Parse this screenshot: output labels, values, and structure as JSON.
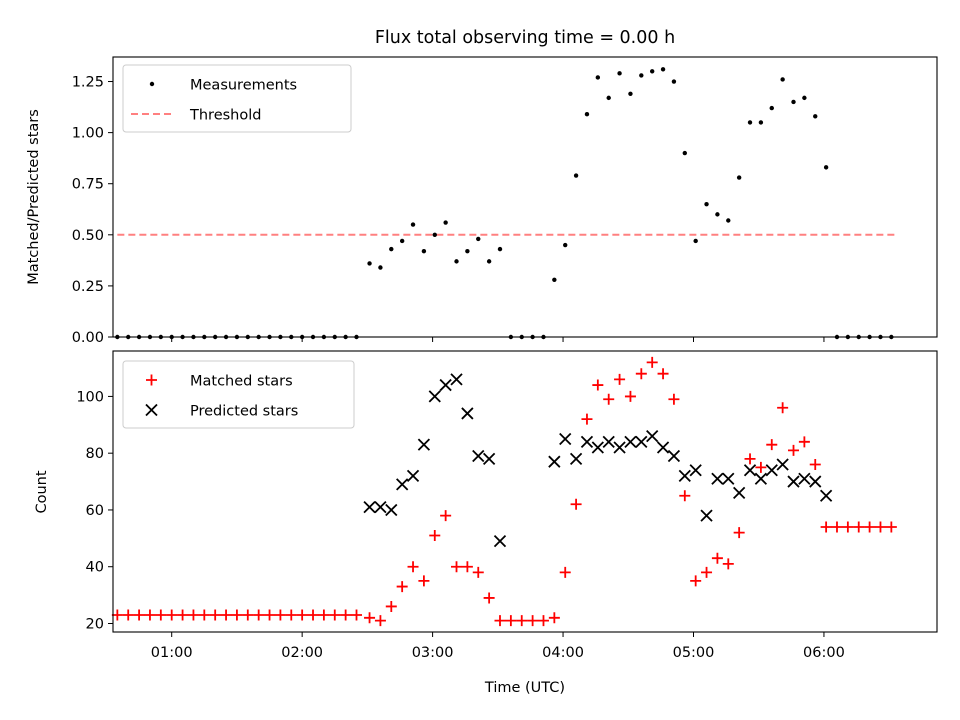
{
  "title": "Flux total observing time = 0.00 h",
  "colors": {
    "measurements": "#000000",
    "threshold": "#ff8080",
    "matched": "#ff0000",
    "predicted": "#000000"
  },
  "chart_data": [
    {
      "type": "scatter",
      "ylabel": "Matched/Predicted stars",
      "xlim": [
        "00:33",
        "06:52"
      ],
      "ylim": [
        0,
        1.37
      ],
      "yticks": [
        "0.00",
        "0.25",
        "0.50",
        "0.75",
        "1.00",
        "1.25"
      ],
      "grid": false,
      "legend": "top-left",
      "legend_entries": [
        "Measurements",
        "Threshold"
      ],
      "threshold": {
        "name": "Threshold",
        "value": 0.5,
        "x_range": [
          "00:35",
          "06:33"
        ]
      },
      "series": [
        {
          "name": "Measurements",
          "x": [
            "00:35",
            "00:40",
            "00:45",
            "00:50",
            "00:55",
            "01:00",
            "01:05",
            "01:10",
            "01:15",
            "01:20",
            "01:25",
            "01:30",
            "01:35",
            "01:40",
            "01:45",
            "01:50",
            "01:55",
            "02:00",
            "02:05",
            "02:10",
            "02:15",
            "02:20",
            "02:25",
            "02:31",
            "02:36",
            "02:41",
            "02:46",
            "02:51",
            "02:56",
            "03:01",
            "03:06",
            "03:11",
            "03:16",
            "03:21",
            "03:26",
            "03:31",
            "03:36",
            "03:41",
            "03:46",
            "03:51",
            "03:56",
            "04:01",
            "04:06",
            "04:11",
            "04:16",
            "04:21",
            "04:26",
            "04:31",
            "04:36",
            "04:41",
            "04:46",
            "04:51",
            "04:56",
            "05:01",
            "05:06",
            "05:11",
            "05:16",
            "05:21",
            "05:26",
            "05:31",
            "05:36",
            "05:41",
            "05:46",
            "05:51",
            "05:56",
            "06:01",
            "06:06",
            "06:11",
            "06:16",
            "06:21",
            "06:26",
            "06:31"
          ],
          "values": [
            0,
            0,
            0,
            0,
            0,
            0,
            0,
            0,
            0,
            0,
            0,
            0,
            0,
            0,
            0,
            0,
            0,
            0,
            0,
            0,
            0,
            0,
            0,
            0.36,
            0.34,
            0.43,
            0.47,
            0.55,
            0.42,
            0.5,
            0.56,
            0.37,
            0.42,
            0.48,
            0.37,
            0.43,
            0,
            0,
            0,
            0,
            0.28,
            0.45,
            0.79,
            1.09,
            1.27,
            1.17,
            1.29,
            1.19,
            1.28,
            1.3,
            1.31,
            1.25,
            0.9,
            0.47,
            0.65,
            0.6,
            0.57,
            0.78,
            1.05,
            1.05,
            1.12,
            1.26,
            1.15,
            1.17,
            1.08,
            0.83,
            0,
            0,
            0,
            0,
            0,
            0
          ]
        }
      ]
    },
    {
      "type": "scatter",
      "xlabel": "Time (UTC)",
      "ylabel": "Count",
      "xlim": [
        "00:33",
        "06:52"
      ],
      "ylim": [
        17,
        116
      ],
      "xticks": [
        "01:00",
        "02:00",
        "03:00",
        "04:00",
        "05:00",
        "06:00"
      ],
      "yticks": [
        "20",
        "40",
        "60",
        "80",
        "100"
      ],
      "grid": false,
      "legend": "top-left",
      "legend_entries": [
        "Matched stars",
        "Predicted stars"
      ],
      "series": [
        {
          "name": "Matched stars",
          "x": [
            "00:35",
            "00:40",
            "00:45",
            "00:50",
            "00:55",
            "01:00",
            "01:05",
            "01:10",
            "01:15",
            "01:20",
            "01:25",
            "01:30",
            "01:35",
            "01:40",
            "01:45",
            "01:50",
            "01:55",
            "02:00",
            "02:05",
            "02:10",
            "02:15",
            "02:20",
            "02:25",
            "02:31",
            "02:36",
            "02:41",
            "02:46",
            "02:51",
            "02:56",
            "03:01",
            "03:06",
            "03:11",
            "03:16",
            "03:21",
            "03:26",
            "03:31",
            "03:36",
            "03:41",
            "03:46",
            "03:51",
            "03:56",
            "04:01",
            "04:06",
            "04:11",
            "04:16",
            "04:21",
            "04:26",
            "04:31",
            "04:36",
            "04:41",
            "04:46",
            "04:51",
            "04:56",
            "05:01",
            "05:06",
            "05:11",
            "05:16",
            "05:21",
            "05:26",
            "05:31",
            "05:36",
            "05:41",
            "05:46",
            "05:51",
            "05:56",
            "06:01",
            "06:06",
            "06:11",
            "06:16",
            "06:21",
            "06:26",
            "06:31"
          ],
          "values": [
            23,
            23,
            23,
            23,
            23,
            23,
            23,
            23,
            23,
            23,
            23,
            23,
            23,
            23,
            23,
            23,
            23,
            23,
            23,
            23,
            23,
            23,
            23,
            22,
            21,
            26,
            33,
            40,
            35,
            51,
            58,
            40,
            40,
            38,
            29,
            21,
            21,
            21,
            21,
            21,
            22,
            38,
            62,
            92,
            104,
            99,
            106,
            100,
            108,
            112,
            108,
            99,
            65,
            35,
            38,
            43,
            41,
            52,
            78,
            75,
            83,
            96,
            81,
            84,
            76,
            54,
            54,
            54,
            54,
            54,
            54,
            54
          ]
        },
        {
          "name": "Predicted stars",
          "x": [
            "02:31",
            "02:36",
            "02:41",
            "02:46",
            "02:51",
            "02:56",
            "03:01",
            "03:06",
            "03:11",
            "03:16",
            "03:21",
            "03:26",
            "03:31",
            "03:56",
            "04:01",
            "04:06",
            "04:11",
            "04:16",
            "04:21",
            "04:26",
            "04:31",
            "04:36",
            "04:41",
            "04:46",
            "04:51",
            "04:56",
            "05:01",
            "05:06",
            "05:11",
            "05:16",
            "05:21",
            "05:26",
            "05:31",
            "05:36",
            "05:41",
            "05:46",
            "05:51",
            "05:56",
            "06:01"
          ],
          "values": [
            61,
            61,
            60,
            69,
            72,
            83,
            100,
            104,
            106,
            94,
            79,
            78,
            49,
            77,
            85,
            78,
            84,
            82,
            84,
            82,
            84,
            84,
            86,
            82,
            79,
            72,
            74,
            58,
            71,
            71,
            66,
            74,
            71,
            74,
            76,
            70,
            71,
            70,
            65
          ]
        }
      ]
    }
  ]
}
